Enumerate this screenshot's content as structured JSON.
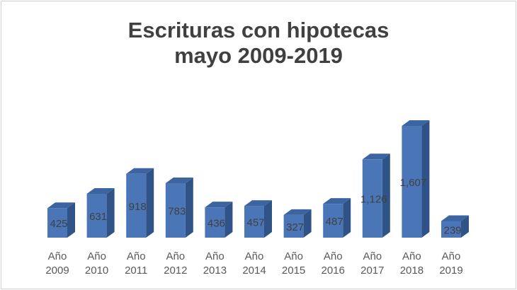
{
  "chart_data": {
    "type": "bar",
    "title_line1": "Escrituras con hipotecas",
    "title_line2": "mayo 2009-2019",
    "categories": [
      "Año 2009",
      "Año 2010",
      "Año 2011",
      "Año 2012",
      "Año 2013",
      "Año 2014",
      "Año 2015",
      "Año 2016",
      "Año 2017",
      "Año 2018",
      "Año 2019"
    ],
    "category_lines": [
      [
        "Año",
        "2009"
      ],
      [
        "Año",
        "2010"
      ],
      [
        "Año",
        "2011"
      ],
      [
        "Año",
        "2012"
      ],
      [
        "Año",
        "2013"
      ],
      [
        "Año",
        "2014"
      ],
      [
        "Año",
        "2015"
      ],
      [
        "Año",
        "2016"
      ],
      [
        "Año",
        "2017"
      ],
      [
        "Año",
        "2018"
      ],
      [
        "Año",
        "2019"
      ]
    ],
    "values": [
      425,
      631,
      918,
      783,
      436,
      457,
      327,
      487,
      1126,
      1607,
      239
    ],
    "value_labels": [
      "425",
      "631",
      "918",
      "783",
      "436",
      "457",
      "327",
      "487",
      "1,126",
      "1,607",
      "239"
    ],
    "xlabel": "",
    "ylabel": "",
    "ylim": [
      0,
      1700
    ],
    "grid": false,
    "style": "3d-column",
    "colors": {
      "front": "#4a76b8",
      "side": "#2f5287",
      "top": "#3b64a0",
      "label": "#404040",
      "axis_label": "#595959"
    }
  }
}
